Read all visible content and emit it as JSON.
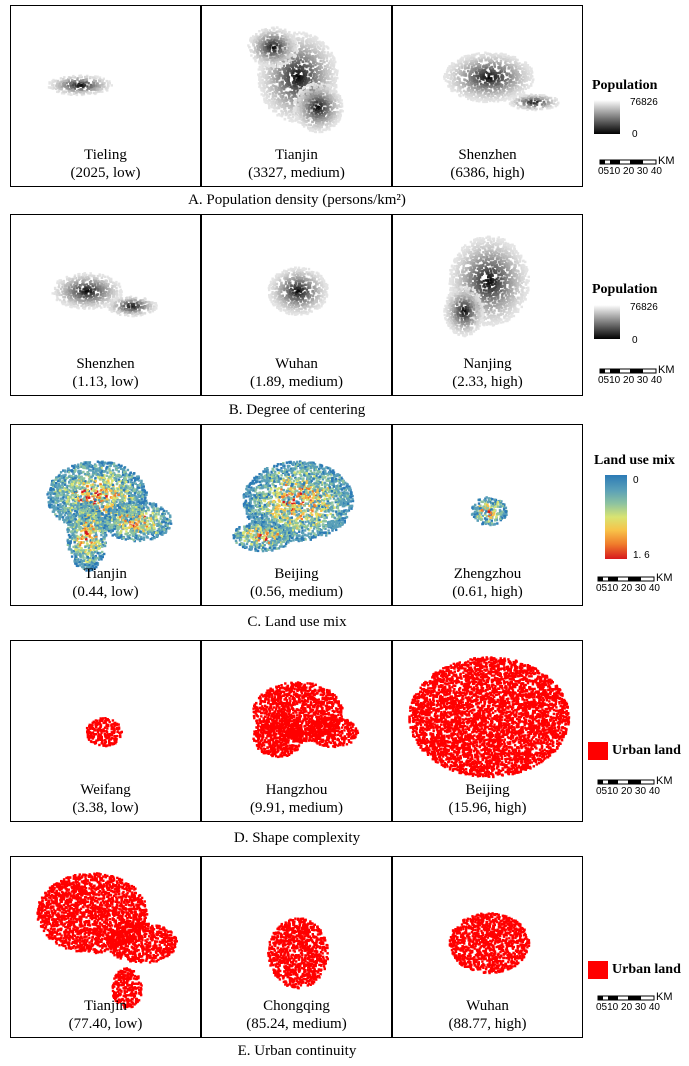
{
  "rows": [
    {
      "caption": "A. Population density (persons/km²)",
      "style": "gray",
      "cities": [
        {
          "name": "Tieling",
          "value": "(2025, low)"
        },
        {
          "name": "Tianjin",
          "value": "(3327, medium)"
        },
        {
          "name": "Shenzhen",
          "value": "(6386, high)"
        }
      ],
      "legend": {
        "title": "Population",
        "max": "76826",
        "min": "0"
      }
    },
    {
      "caption": "B. Degree of centering",
      "style": "gray",
      "cities": [
        {
          "name": "Shenzhen",
          "value": "(1.13, low)"
        },
        {
          "name": "Wuhan",
          "value": "(1.89, medium)"
        },
        {
          "name": "Nanjing",
          "value": "(2.33, high)"
        }
      ],
      "legend": {
        "title": "Population",
        "max": "76826",
        "min": "0"
      }
    },
    {
      "caption": "C. Land use mix",
      "style": "mix",
      "cities": [
        {
          "name": "Tianjin",
          "value": "(0.44, low)"
        },
        {
          "name": "Beijing",
          "value": "(0.56, medium)"
        },
        {
          "name": "Zhengzhou",
          "value": "(0.61, high)"
        }
      ],
      "legend": {
        "title": "Land use mix",
        "max": "0",
        "min": "1. 6"
      }
    },
    {
      "caption": "D. Shape complexity",
      "style": "red",
      "cities": [
        {
          "name": "Weifang",
          "value": "(3.38, low)"
        },
        {
          "name": "Hangzhou",
          "value": "(9.91, medium)"
        },
        {
          "name": "Beijing",
          "value": "(15.96, high)"
        }
      ],
      "legend": {
        "title": "Urban land"
      }
    },
    {
      "caption": "E. Urban continuity",
      "style": "red",
      "cities": [
        {
          "name": "Tianjin",
          "value": "(77.40, low)"
        },
        {
          "name": "Chongqing",
          "value": "(85.24, medium)"
        },
        {
          "name": "Wuhan",
          "value": "(88.77, high)"
        }
      ],
      "legend": {
        "title": "Urban land"
      }
    }
  ],
  "scalebar": {
    "unit": "KM",
    "ticks": "0510 20 30 40"
  },
  "colors": {
    "urban": "#ff0000",
    "mix_low": "#2c7bb6",
    "mix_high": "#d7191c"
  }
}
